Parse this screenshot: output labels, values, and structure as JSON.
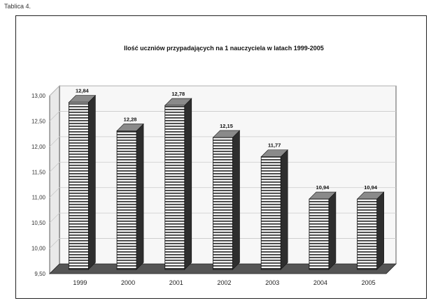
{
  "caption": "Tablica 4.",
  "chart_data": {
    "type": "bar",
    "title": "Ilość uczniów przypadających na 1 nauczyciela w latach 1999-2005",
    "xlabel": "",
    "ylabel": "",
    "categories": [
      "1999",
      "2000",
      "2001",
      "2002",
      "2003",
      "2004",
      "2005"
    ],
    "values": [
      12.84,
      12.28,
      12.78,
      12.15,
      11.77,
      10.94,
      10.94
    ],
    "value_labels": [
      "12,84",
      "12,28",
      "12,78",
      "12,15",
      "11,77",
      "10,94",
      "10,94"
    ],
    "ylim": [
      9.5,
      13.0
    ],
    "yticks": [
      9.5,
      10.0,
      10.5,
      11.0,
      11.5,
      12.0,
      12.5,
      13.0
    ],
    "ytick_labels": [
      "9,50",
      "10,00",
      "10,50",
      "11,00",
      "11,50",
      "12,00",
      "12,50",
      "13,00"
    ],
    "grid": true,
    "legend": "none",
    "style": "3d-column-with-horizontal-stripes"
  }
}
